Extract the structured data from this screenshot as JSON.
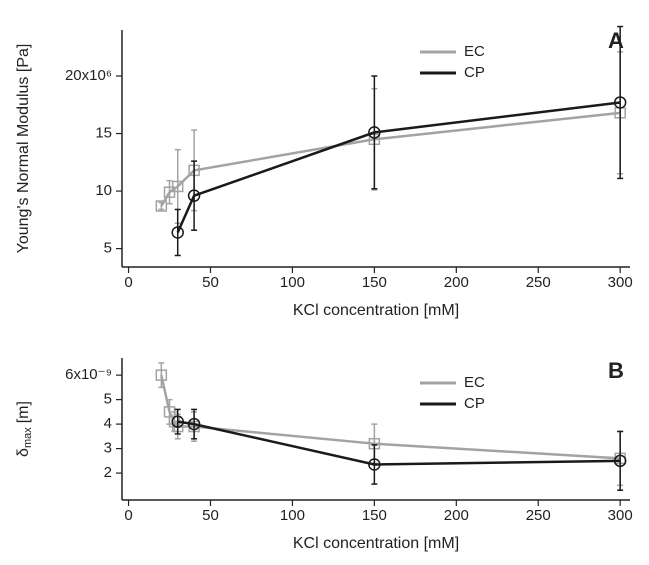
{
  "chart_data": [
    {
      "type": "line",
      "panel_label": "A",
      "x_label": "KCl concentration [mM]",
      "y_label": "Young's Normal Modulus [Pa]",
      "xlim": [
        -4,
        306
      ],
      "xticks": [
        0,
        50,
        100,
        150,
        200,
        250,
        300
      ],
      "ylim": [
        3.4,
        24
      ],
      "yticks": [
        5,
        10,
        15,
        {
          "value": 20,
          "label": "20x10⁶"
        }
      ],
      "series": [
        {
          "name": "EC",
          "color": "#a3a3a3",
          "marker": "square",
          "x": [
            20,
            25,
            30,
            40,
            150,
            300
          ],
          "values": [
            8.7,
            9.9,
            10.4,
            11.8,
            14.5,
            16.8
          ],
          "errors": [
            0.3,
            1.0,
            3.2,
            3.5,
            4.4,
            5.3
          ]
        },
        {
          "name": "CP",
          "color": "#1a1a1a",
          "marker": "circle",
          "x": [
            30,
            40,
            150,
            300
          ],
          "values": [
            6.4,
            9.6,
            15.1,
            17.7
          ],
          "errors": [
            2.0,
            3.0,
            4.9,
            6.6
          ]
        }
      ]
    },
    {
      "type": "line",
      "panel_label": "B",
      "x_label": "KCl concentration [mM]",
      "y_label_symbol": "δ",
      "y_label_sub": "max",
      "y_label_unit": "[m]",
      "xlim": [
        -4,
        306
      ],
      "xticks": [
        0,
        50,
        100,
        150,
        200,
        250,
        300
      ],
      "ylim": [
        0.9,
        6.7
      ],
      "yticks": [
        2,
        3,
        4,
        5,
        {
          "value": 6,
          "label": "6x10⁻⁹"
        }
      ],
      "series": [
        {
          "name": "EC",
          "color": "#a3a3a3",
          "marker": "square",
          "x": [
            20,
            25,
            28,
            30,
            40,
            150,
            300
          ],
          "values": [
            6.0,
            4.5,
            4.1,
            3.9,
            3.9,
            3.2,
            2.6
          ],
          "errors": [
            0.5,
            0.5,
            0.4,
            0.5,
            0.6,
            0.8,
            1.1
          ]
        },
        {
          "name": "CP",
          "color": "#1a1a1a",
          "marker": "circle",
          "x": [
            30,
            40,
            150,
            300
          ],
          "values": [
            4.1,
            4.0,
            2.35,
            2.5
          ],
          "errors": [
            0.5,
            0.6,
            0.8,
            1.2
          ]
        }
      ]
    }
  ]
}
